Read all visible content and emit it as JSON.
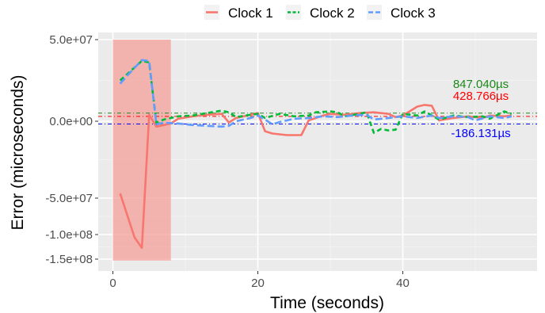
{
  "chart_data": {
    "type": "line",
    "xlabel": "Time (seconds)",
    "ylabel": "Error (microseconds)",
    "x_ticks": [
      0,
      20,
      40
    ],
    "x_tick_labels": [
      "0",
      "20",
      "40"
    ],
    "y_ticks": [
      50000000,
      0,
      -50000000,
      -100000000,
      -150000000
    ],
    "y_tick_labels": [
      "5.0e+07",
      "0.0e+00",
      "-5.0e+07",
      "-1.0e+08",
      "-1.5e+08"
    ],
    "legend": {
      "position": "top",
      "entries": [
        "Clock 1",
        "Clock 2",
        "Clock 3"
      ]
    },
    "highlight_region": {
      "x_start": 0,
      "x_end": 8,
      "y_start": 50000000,
      "y_end": -153000000,
      "color": "#f4a09b"
    },
    "series": [
      {
        "name": "Clock 1",
        "color": "#f8766d",
        "dash": "solid",
        "points": [
          [
            1,
            -47000000
          ],
          [
            3,
            -106000000
          ],
          [
            4,
            -127000000
          ],
          [
            5,
            4000000
          ],
          [
            6,
            -3500000
          ],
          [
            7,
            -2500000
          ],
          [
            8,
            -1500000
          ],
          [
            9,
            1500000
          ],
          [
            11,
            3000000
          ],
          [
            13,
            4000000
          ],
          [
            15,
            4500000
          ],
          [
            16,
            -800000
          ],
          [
            17,
            2000000
          ],
          [
            19,
            4000000
          ],
          [
            20,
            5000000
          ],
          [
            21,
            -6500000
          ],
          [
            22,
            -8000000
          ],
          [
            24,
            -9000000
          ],
          [
            26,
            -9000000
          ],
          [
            27,
            500000
          ],
          [
            29,
            3500000
          ],
          [
            30,
            4500000
          ],
          [
            32,
            4000000
          ],
          [
            34,
            5000000
          ],
          [
            36,
            5500000
          ],
          [
            38,
            4500000
          ],
          [
            39,
            2500000
          ],
          [
            40,
            3500000
          ],
          [
            42,
            9000000
          ],
          [
            43,
            10000000
          ],
          [
            44,
            9500000
          ],
          [
            45,
            500000
          ],
          [
            47,
            2000000
          ],
          [
            49,
            3000000
          ],
          [
            51,
            2000000
          ],
          [
            52,
            3500000
          ],
          [
            54,
            3000000
          ],
          [
            55,
            3500000
          ]
        ]
      },
      {
        "name": "Clock 2",
        "color": "#00ba38",
        "dash": "6,4",
        "points": [
          [
            1,
            25000000
          ],
          [
            2,
            29000000
          ],
          [
            4,
            37000000
          ],
          [
            5,
            36000000
          ],
          [
            6,
            -1000000
          ],
          [
            7,
            1000000
          ],
          [
            9,
            3000000
          ],
          [
            11,
            3500000
          ],
          [
            13,
            5000000
          ],
          [
            15,
            6500000
          ],
          [
            16,
            5500000
          ],
          [
            17,
            2500000
          ],
          [
            19,
            4000000
          ],
          [
            20,
            4500000
          ],
          [
            21,
            2000000
          ],
          [
            23,
            4500000
          ],
          [
            25,
            3000000
          ],
          [
            27,
            3500000
          ],
          [
            28,
            5500000
          ],
          [
            30,
            6000000
          ],
          [
            31,
            5500000
          ],
          [
            32,
            3000000
          ],
          [
            34,
            4500000
          ],
          [
            35,
            5500000
          ],
          [
            36,
            -7500000
          ],
          [
            37,
            -5000000
          ],
          [
            38,
            -6000000
          ],
          [
            39,
            -5500000
          ],
          [
            40,
            4500000
          ],
          [
            42,
            3500000
          ],
          [
            43,
            6000000
          ],
          [
            45,
            1000000
          ],
          [
            47,
            3500000
          ],
          [
            49,
            2500000
          ],
          [
            51,
            3000000
          ],
          [
            52,
            1500000
          ],
          [
            54,
            6000000
          ],
          [
            55,
            4500000
          ]
        ]
      },
      {
        "name": "Clock 3",
        "color": "#619cff",
        "dash": "9,4",
        "points": [
          [
            1,
            23000000
          ],
          [
            2,
            28000000
          ],
          [
            4,
            37500000
          ],
          [
            5,
            37000000
          ],
          [
            6,
            -2000000
          ],
          [
            7,
            -1000000
          ],
          [
            9,
            -1500000
          ],
          [
            11,
            -2500000
          ],
          [
            13,
            -3000000
          ],
          [
            15,
            -3500000
          ],
          [
            16,
            -3000000
          ],
          [
            17,
            0
          ],
          [
            19,
            2000000
          ],
          [
            20,
            3500000
          ],
          [
            21,
            1000000
          ],
          [
            22,
            -2000000
          ],
          [
            23,
            -500000
          ],
          [
            25,
            1500000
          ],
          [
            27,
            2000000
          ],
          [
            29,
            3000000
          ],
          [
            31,
            2500000
          ],
          [
            33,
            3500000
          ],
          [
            35,
            4000000
          ],
          [
            36,
            1000000
          ],
          [
            38,
            2000000
          ],
          [
            40,
            3000000
          ],
          [
            42,
            2000000
          ],
          [
            44,
            3500000
          ],
          [
            45,
            2000000
          ],
          [
            47,
            3000000
          ],
          [
            49,
            2500000
          ],
          [
            50,
            500000
          ],
          [
            52,
            3000000
          ],
          [
            54,
            2000000
          ],
          [
            55,
            3000000
          ]
        ]
      }
    ],
    "reference_lines": [
      {
        "series": "Clock 2",
        "y": 5000000,
        "label": "847.040µs",
        "color": "#1a8a1a"
      },
      {
        "series": "Clock 1",
        "y": 3000000,
        "label": "428.766µs",
        "color": "#ff0000"
      },
      {
        "series": "Clock 3",
        "y": -1800000,
        "label": "-186.131µs",
        "color": "#0000ff"
      }
    ],
    "grid": true
  }
}
